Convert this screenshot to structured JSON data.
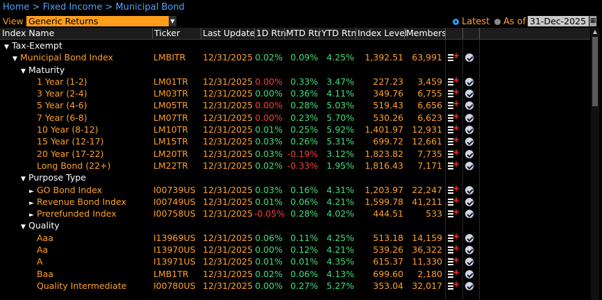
{
  "breadcrumb": [
    "Home",
    ">",
    "Fixed Income",
    ">",
    "Municipal Bond"
  ],
  "view": {
    "label": "View",
    "selected": "Generic Returns"
  },
  "asof": {
    "latest_label": "Latest",
    "asof_label": "As of",
    "date": "31-Dec-2025"
  },
  "columns": {
    "name": "Index Name",
    "ticker": "Ticker",
    "last_update": "Last Update",
    "d1": "1D Rtn",
    "mtd": "MTD Rtn",
    "ytd": "YTD Rtn",
    "level": "Index Level",
    "members": "Members"
  },
  "rows": [
    {
      "name": "Tax-Exempt",
      "indent": 0,
      "tri": "▼",
      "type": "group"
    },
    {
      "name": "Municipal Bond Index",
      "indent": 1,
      "tri": "▼",
      "type": "index",
      "ticker": "LMBITR",
      "date": "12/31/2025",
      "d1": "0.02%",
      "d1_sign": "pos",
      "mtd": "0.09%",
      "mtd_sign": "pos",
      "ytd": "4.25%",
      "level": "1,392.51",
      "members": "63,991",
      "icons": true
    },
    {
      "name": "Maturity",
      "indent": 2,
      "tri": "▼",
      "type": "group"
    },
    {
      "name": "1 Year (1-2)",
      "indent": 3,
      "type": "index",
      "ticker": "LM01TR",
      "date": "12/31/2025",
      "d1": "0.00%",
      "d1_sign": "neg",
      "mtd": "0.33%",
      "mtd_sign": "pos",
      "ytd": "3.47%",
      "level": "227.23",
      "members": "3,459",
      "icons": true
    },
    {
      "name": "3 Year (2-4)",
      "indent": 3,
      "type": "index",
      "ticker": "LM03TR",
      "date": "12/31/2025",
      "d1": "0.00%",
      "d1_sign": "pos",
      "mtd": "0.36%",
      "mtd_sign": "pos",
      "ytd": "4.11%",
      "level": "349.76",
      "members": "6,755",
      "icons": true
    },
    {
      "name": "5 Year (4-6)",
      "indent": 3,
      "type": "index",
      "ticker": "LM05TR",
      "date": "12/31/2025",
      "d1": "0.00%",
      "d1_sign": "neg",
      "mtd": "0.28%",
      "mtd_sign": "pos",
      "ytd": "5.03%",
      "level": "519.43",
      "members": "6,656",
      "icons": true
    },
    {
      "name": "7 Year (6-8)",
      "indent": 3,
      "type": "index",
      "ticker": "LM07TR",
      "date": "12/31/2025",
      "d1": "0.00%",
      "d1_sign": "neg",
      "mtd": "0.23%",
      "mtd_sign": "pos",
      "ytd": "5.70%",
      "level": "530.26",
      "members": "6,623",
      "icons": true
    },
    {
      "name": "10 Year (8-12)",
      "indent": 3,
      "type": "index",
      "ticker": "LM10TR",
      "date": "12/31/2025",
      "d1": "0.01%",
      "d1_sign": "pos",
      "mtd": "0.25%",
      "mtd_sign": "pos",
      "ytd": "5.92%",
      "level": "1,401.97",
      "members": "12,931",
      "icons": true
    },
    {
      "name": "15 Year (12-17)",
      "indent": 3,
      "type": "index",
      "ticker": "LM15TR",
      "date": "12/31/2025",
      "d1": "0.03%",
      "d1_sign": "pos",
      "mtd": "0.26%",
      "mtd_sign": "pos",
      "ytd": "5.31%",
      "level": "699.72",
      "members": "12,661",
      "icons": true
    },
    {
      "name": "20 Year (17-22)",
      "indent": 3,
      "type": "index",
      "ticker": "LM20TR",
      "date": "12/31/2025",
      "d1": "0.03%",
      "d1_sign": "pos",
      "mtd": "-0.19%",
      "mtd_sign": "neg",
      "ytd": "3.12%",
      "level": "1,823.82",
      "members": "7,735",
      "icons": true
    },
    {
      "name": "Long Bond (22+)",
      "indent": 3,
      "type": "index",
      "ticker": "LM22TR",
      "date": "12/31/2025",
      "d1": "0.02%",
      "d1_sign": "pos",
      "mtd": "-0.33%",
      "mtd_sign": "neg",
      "ytd": "1.95%",
      "level": "1,816.43",
      "members": "7,171",
      "icons": true
    },
    {
      "name": "Purpose Type",
      "indent": 2,
      "tri": "▼",
      "type": "group"
    },
    {
      "name": "GO Bond Index",
      "indent": 3,
      "tri": "►",
      "type": "index",
      "ticker": "I00739US",
      "date": "12/31/2025",
      "d1": "0.03%",
      "d1_sign": "pos",
      "mtd": "0.16%",
      "mtd_sign": "pos",
      "ytd": "4.31%",
      "level": "1,203.97",
      "members": "22,247",
      "icons": true
    },
    {
      "name": "Revenue Bond Index",
      "indent": 3,
      "tri": "►",
      "type": "index",
      "ticker": "I00749US",
      "date": "12/31/2025",
      "d1": "0.01%",
      "d1_sign": "pos",
      "mtd": "0.06%",
      "mtd_sign": "pos",
      "ytd": "4.21%",
      "level": "1,599.78",
      "members": "41,211",
      "icons": true
    },
    {
      "name": "Prerefunded Index",
      "indent": 3,
      "tri": "►",
      "type": "index",
      "ticker": "I00758US",
      "date": "12/31/2025",
      "d1": "-0.05%",
      "d1_sign": "neg",
      "mtd": "0.28%",
      "mtd_sign": "pos",
      "ytd": "4.02%",
      "level": "444.51",
      "members": "533",
      "icons": true
    },
    {
      "name": "Quality",
      "indent": 2,
      "tri": "▼",
      "type": "group"
    },
    {
      "name": "Aaa",
      "indent": 3,
      "type": "index",
      "ticker": "I13969US",
      "date": "12/31/2025",
      "d1": "0.06%",
      "d1_sign": "pos",
      "mtd": "0.11%",
      "mtd_sign": "pos",
      "ytd": "4.25%",
      "level": "513.18",
      "members": "14,159",
      "icons": true
    },
    {
      "name": "Aa",
      "indent": 3,
      "type": "index",
      "ticker": "I13970US",
      "date": "12/31/2025",
      "d1": "0.00%",
      "d1_sign": "pos",
      "mtd": "0.12%",
      "mtd_sign": "pos",
      "ytd": "4.21%",
      "level": "539.26",
      "members": "36,322",
      "icons": true
    },
    {
      "name": "A",
      "indent": 3,
      "type": "index",
      "ticker": "I13971US",
      "date": "12/31/2025",
      "d1": "0.01%",
      "d1_sign": "pos",
      "mtd": "0.01%",
      "mtd_sign": "pos",
      "ytd": "4.35%",
      "level": "615.37",
      "members": "11,330",
      "icons": true
    },
    {
      "name": "Baa",
      "indent": 3,
      "type": "index",
      "ticker": "LMB1TR",
      "date": "12/31/2025",
      "d1": "0.02%",
      "d1_sign": "pos",
      "mtd": "0.06%",
      "mtd_sign": "pos",
      "ytd": "4.13%",
      "level": "699.60",
      "members": "2,180",
      "icons": true
    },
    {
      "name": "Quality Intermediate",
      "indent": 3,
      "type": "index",
      "ticker": "I00780US",
      "date": "12/31/2025",
      "d1": "0.00%",
      "d1_sign": "pos",
      "mtd": "0.27%",
      "mtd_sign": "pos",
      "ytd": "5.27%",
      "level": "353.04",
      "members": "32,017",
      "icons": true
    }
  ]
}
